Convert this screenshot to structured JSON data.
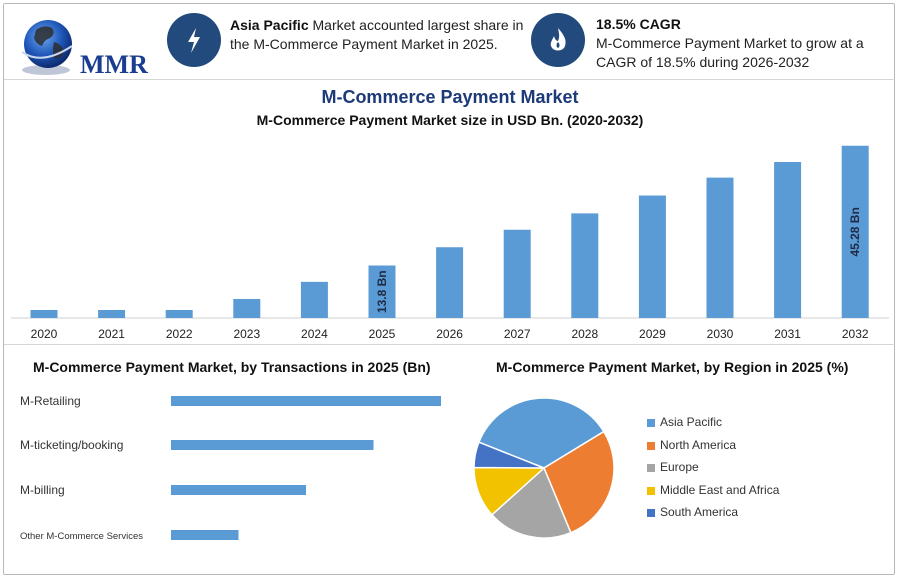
{
  "logo": {
    "text": "MMR"
  },
  "facts": [
    {
      "icon": "bolt-icon",
      "bold": "Asia Pacific",
      "line1": " Market accounted largest share in",
      "line2": "the M-Commerce Payment Market in 2025."
    },
    {
      "icon": "flame-icon",
      "bold": "18.5% CAGR",
      "line1": "",
      "line2": "M-Commerce Payment Market to grow at a",
      "line3": "CAGR of 18.5% during 2026-2032"
    }
  ],
  "colors": {
    "bar": "#5b9bd5",
    "navy": "#224a7c",
    "title": "#1d3a78"
  },
  "chart_data": [
    {
      "type": "bar",
      "title": "M-Commerce Payment Market",
      "subtitle": "M-Commerce Payment Market size in USD Bn. (2020-2032)",
      "categories": [
        "2020",
        "2021",
        "2022",
        "2023",
        "2024",
        "2025",
        "2026",
        "2027",
        "2028",
        "2029",
        "2030",
        "2031",
        "2032"
      ],
      "values": [
        2.1,
        2.1,
        2.1,
        5.0,
        9.5,
        13.8,
        18.6,
        23.2,
        27.5,
        32.2,
        36.9,
        41.0,
        45.28
      ],
      "data_labels": {
        "2025": "13.8 Bn",
        "2032": "45.28 Bn"
      },
      "ylim": [
        0,
        46
      ],
      "grid": false
    },
    {
      "type": "bar",
      "orientation": "horizontal",
      "title": "M-Commerce Payment Market, by Transactions in 2025 (Bn)",
      "categories": [
        "M-Retailing",
        "M-ticketing/booking",
        "M-billing",
        "Other M-Commerce Services"
      ],
      "values": [
        100,
        75,
        50,
        25
      ],
      "grid": false
    },
    {
      "type": "pie",
      "title": "M-Commerce Payment Market, by Region in 2025 (%)",
      "labels": [
        "Asia Pacific",
        "North America",
        "Europe",
        "Middle East and Africa",
        "South America"
      ],
      "values": [
        36,
        28,
        20,
        12,
        6
      ],
      "colors": [
        "#5b9bd5",
        "#ed7d31",
        "#a5a5a5",
        "#f2c100",
        "#4472c4"
      ],
      "legend": "right"
    }
  ]
}
